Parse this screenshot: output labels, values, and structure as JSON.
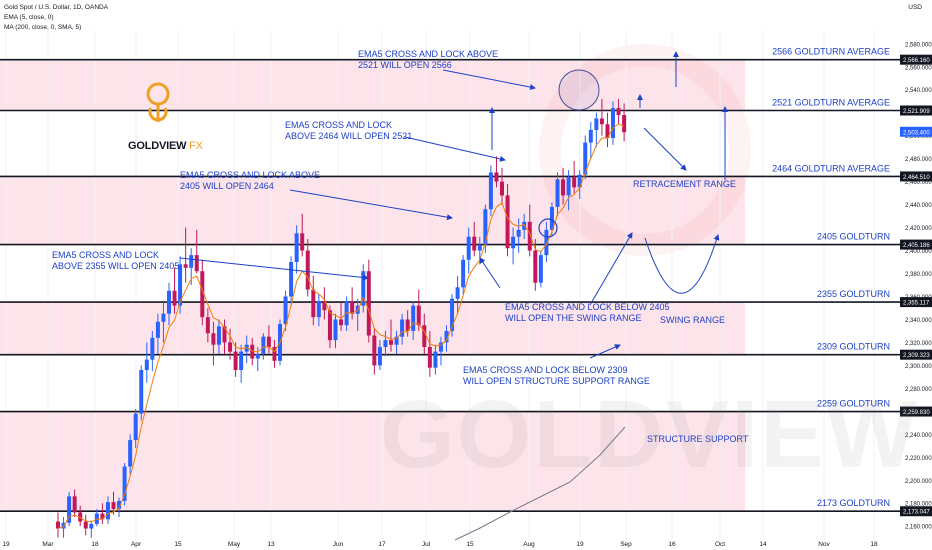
{
  "header": {
    "symbol": "Gold Spot / U.S. Dollar, 1D, OANDA",
    "ema": "EMA (5, close, 0)",
    "ma": "MA (200, close, 0, SMA, 5)",
    "currency": "USD"
  },
  "logo": {
    "name": "GOLDVIEW",
    "suffix": "FX"
  },
  "watermark": "GOLDVIEW FX",
  "colors": {
    "up": "#2962ff",
    "down": "#c2185b",
    "ema": "#f57c00",
    "ma": "#787b86",
    "band": "#fde4ea",
    "label": "#1e40c8",
    "level_line": "#131722"
  },
  "chart_data": {
    "type": "candlestick",
    "ylim": [
      2148,
      2592
    ],
    "y_ticks": [
      "2,580.000",
      "2,560.000",
      "2,540.000",
      "2,520.000",
      "2,500.000",
      "2,480.000",
      "2,460.000",
      "2,440.000",
      "2,420.000",
      "2,400.000",
      "2,380.000",
      "2,360.000",
      "2,340.000",
      "2,320.000",
      "2,300.000",
      "2,280.000",
      "2,260.000",
      "2,240.000",
      "2,220.000",
      "2,200.000",
      "2,180.000",
      "2,160.000"
    ],
    "x_ticks": [
      "19",
      "Mar",
      "18",
      "Apr",
      "15",
      "May",
      "13",
      "Jun",
      "17",
      "Jul",
      "15",
      "Aug",
      "19",
      "Sep",
      "16",
      "Oct",
      "14",
      "Nov",
      "18"
    ],
    "levels": [
      {
        "value": 2566.16,
        "price_label": "2,566.160",
        "label": "2566 GOLDTURN AVERAGE"
      },
      {
        "value": 2521.909,
        "price_label": "2,521.909",
        "label": "2521 GOLDTURN AVERAGE"
      },
      {
        "value": 2464.51,
        "price_label": "2,464.510",
        "label": "2464 GOLDTURN AVERAGE"
      },
      {
        "value": 2405.186,
        "price_label": "2,405.186",
        "label": "2405 GOLDTURN"
      },
      {
        "value": 2355.117,
        "price_label": "2,355.117",
        "label": "2355 GOLDTURN"
      },
      {
        "value": 2309.323,
        "price_label": "2,309.323",
        "label": "2309 GOLDTURN"
      },
      {
        "value": 2259.83,
        "price_label": "2,259.830",
        "label": "2259 GOLDTURN"
      },
      {
        "value": 2173.047,
        "price_label": "2,173.047",
        "label": "2173 GOLDTURN"
      }
    ],
    "last_price_label": "2,503.400",
    "last_price": 2503.4,
    "bands": [
      [
        2521.909,
        2566.16
      ],
      [
        2405.186,
        2464.51
      ],
      [
        2309.323,
        2355.117
      ],
      [
        2173.047,
        2259.83
      ]
    ],
    "annotations": [
      {
        "lines": [
          "EMA5 CROSS AND LOCK ABOVE",
          "2521 WILL OPEN 2566"
        ]
      },
      {
        "lines": [
          "EMA5 CROSS AND LOCK",
          "ABOVE 2464 WILL OPEN 2521"
        ]
      },
      {
        "lines": [
          "EMA5 CROSS AND LOCK ABOVE",
          "2405 WILL OPEN 2464"
        ]
      },
      {
        "lines": [
          "EMA5 CROSS AND LOCK",
          "ABOVE 2355 WILL OPEN 2405"
        ]
      },
      {
        "lines": [
          "EMA5 CROSS AND LOCK BELOW 2405",
          "WILL OPEN THE SWING RANGE"
        ]
      },
      {
        "lines": [
          "EMA5 CROSS AND LOCK BELOW 2309",
          "WILL OPEN STRUCTURE SUPPORT RANGE"
        ]
      },
      {
        "lines": [
          "RETRACEMENT RANGE"
        ]
      },
      {
        "lines": [
          "SWING RANGE"
        ]
      },
      {
        "lines": [
          "STRUCTURE SUPPORT"
        ]
      }
    ],
    "ohlc": [
      [
        2164,
        2172,
        2150,
        2158
      ],
      [
        2158,
        2168,
        2150,
        2163
      ],
      [
        2163,
        2190,
        2160,
        2186
      ],
      [
        2186,
        2192,
        2168,
        2172
      ],
      [
        2172,
        2178,
        2160,
        2164
      ],
      [
        2164,
        2170,
        2152,
        2158
      ],
      [
        2158,
        2165,
        2150,
        2162
      ],
      [
        2162,
        2175,
        2160,
        2171
      ],
      [
        2171,
        2180,
        2162,
        2166
      ],
      [
        2166,
        2186,
        2162,
        2181
      ],
      [
        2181,
        2190,
        2170,
        2175
      ],
      [
        2175,
        2185,
        2168,
        2182
      ],
      [
        2182,
        2215,
        2178,
        2212
      ],
      [
        2212,
        2240,
        2205,
        2235
      ],
      [
        2235,
        2262,
        2228,
        2258
      ],
      [
        2258,
        2300,
        2252,
        2296
      ],
      [
        2296,
        2320,
        2285,
        2305
      ],
      [
        2305,
        2330,
        2295,
        2324
      ],
      [
        2324,
        2345,
        2310,
        2338
      ],
      [
        2338,
        2355,
        2320,
        2345
      ],
      [
        2345,
        2372,
        2335,
        2365
      ],
      [
        2365,
        2385,
        2345,
        2352
      ],
      [
        2352,
        2395,
        2345,
        2388
      ],
      [
        2388,
        2420,
        2372,
        2385
      ],
      [
        2385,
        2402,
        2370,
        2396
      ],
      [
        2396,
        2418,
        2380,
        2382
      ],
      [
        2382,
        2392,
        2335,
        2342
      ],
      [
        2342,
        2350,
        2320,
        2328
      ],
      [
        2328,
        2338,
        2300,
        2318
      ],
      [
        2318,
        2340,
        2310,
        2334
      ],
      [
        2334,
        2340,
        2310,
        2320
      ],
      [
        2320,
        2332,
        2305,
        2312
      ],
      [
        2312,
        2320,
        2290,
        2296
      ],
      [
        2296,
        2318,
        2285,
        2312
      ],
      [
        2312,
        2326,
        2302,
        2318
      ],
      [
        2318,
        2324,
        2300,
        2306
      ],
      [
        2306,
        2316,
        2295,
        2310
      ],
      [
        2310,
        2328,
        2305,
        2325
      ],
      [
        2325,
        2335,
        2310,
        2316
      ],
      [
        2316,
        2322,
        2298,
        2304
      ],
      [
        2304,
        2340,
        2300,
        2336
      ],
      [
        2336,
        2365,
        2330,
        2360
      ],
      [
        2360,
        2395,
        2352,
        2390
      ],
      [
        2390,
        2422,
        2380,
        2415
      ],
      [
        2415,
        2432,
        2395,
        2400
      ],
      [
        2400,
        2410,
        2360,
        2366
      ],
      [
        2366,
        2378,
        2335,
        2342
      ],
      [
        2342,
        2362,
        2334,
        2356
      ],
      [
        2356,
        2368,
        2340,
        2348
      ],
      [
        2348,
        2352,
        2315,
        2322
      ],
      [
        2322,
        2345,
        2315,
        2340
      ],
      [
        2340,
        2355,
        2330,
        2335
      ],
      [
        2335,
        2360,
        2330,
        2356
      ],
      [
        2356,
        2368,
        2340,
        2345
      ],
      [
        2345,
        2358,
        2330,
        2352
      ],
      [
        2352,
        2388,
        2346,
        2382
      ],
      [
        2382,
        2392,
        2320,
        2326
      ],
      [
        2326,
        2332,
        2292,
        2300
      ],
      [
        2300,
        2322,
        2296,
        2316
      ],
      [
        2316,
        2330,
        2308,
        2322
      ],
      [
        2322,
        2340,
        2312,
        2318
      ],
      [
        2318,
        2330,
        2310,
        2325
      ],
      [
        2325,
        2345,
        2318,
        2340
      ],
      [
        2340,
        2348,
        2325,
        2330
      ],
      [
        2330,
        2356,
        2322,
        2352
      ],
      [
        2352,
        2366,
        2330,
        2335
      ],
      [
        2335,
        2345,
        2310,
        2316
      ],
      [
        2316,
        2330,
        2290,
        2298
      ],
      [
        2298,
        2318,
        2292,
        2312
      ],
      [
        2312,
        2325,
        2300,
        2320
      ],
      [
        2320,
        2335,
        2312,
        2330
      ],
      [
        2330,
        2362,
        2325,
        2358
      ],
      [
        2358,
        2378,
        2345,
        2368
      ],
      [
        2368,
        2396,
        2362,
        2392
      ],
      [
        2392,
        2420,
        2380,
        2412
      ],
      [
        2412,
        2425,
        2395,
        2400
      ],
      [
        2400,
        2412,
        2388,
        2405
      ],
      [
        2405,
        2440,
        2398,
        2436
      ],
      [
        2436,
        2474,
        2430,
        2468
      ],
      [
        2468,
        2482,
        2455,
        2460
      ],
      [
        2460,
        2472,
        2440,
        2448
      ],
      [
        2448,
        2458,
        2395,
        2402
      ],
      [
        2402,
        2420,
        2388,
        2412
      ],
      [
        2412,
        2428,
        2398,
        2418
      ],
      [
        2418,
        2432,
        2410,
        2425
      ],
      [
        2425,
        2440,
        2395,
        2400
      ],
      [
        2400,
        2410,
        2365,
        2372
      ],
      [
        2372,
        2400,
        2368,
        2396
      ],
      [
        2396,
        2425,
        2390,
        2418
      ],
      [
        2418,
        2442,
        2412,
        2438
      ],
      [
        2438,
        2468,
        2430,
        2462
      ],
      [
        2462,
        2472,
        2440,
        2448
      ],
      [
        2448,
        2470,
        2435,
        2464
      ],
      [
        2464,
        2478,
        2450,
        2455
      ],
      [
        2455,
        2470,
        2445,
        2466
      ],
      [
        2466,
        2500,
        2462,
        2494
      ],
      [
        2494,
        2512,
        2480,
        2505
      ],
      [
        2505,
        2520,
        2490,
        2515
      ],
      [
        2515,
        2532,
        2500,
        2510
      ],
      [
        2510,
        2520,
        2490,
        2498
      ],
      [
        2498,
        2530,
        2492,
        2524
      ],
      [
        2524,
        2532,
        2510,
        2518
      ],
      [
        2518,
        2528,
        2495,
        2503
      ]
    ],
    "ma200": [
      [
        130,
        2140
      ],
      [
        150,
        2152
      ],
      [
        170,
        2164
      ],
      [
        190,
        2176
      ],
      [
        210,
        2188
      ],
      [
        230,
        2200
      ],
      [
        250,
        2212
      ],
      [
        270,
        2224
      ],
      [
        284,
        2233
      ]
    ]
  }
}
